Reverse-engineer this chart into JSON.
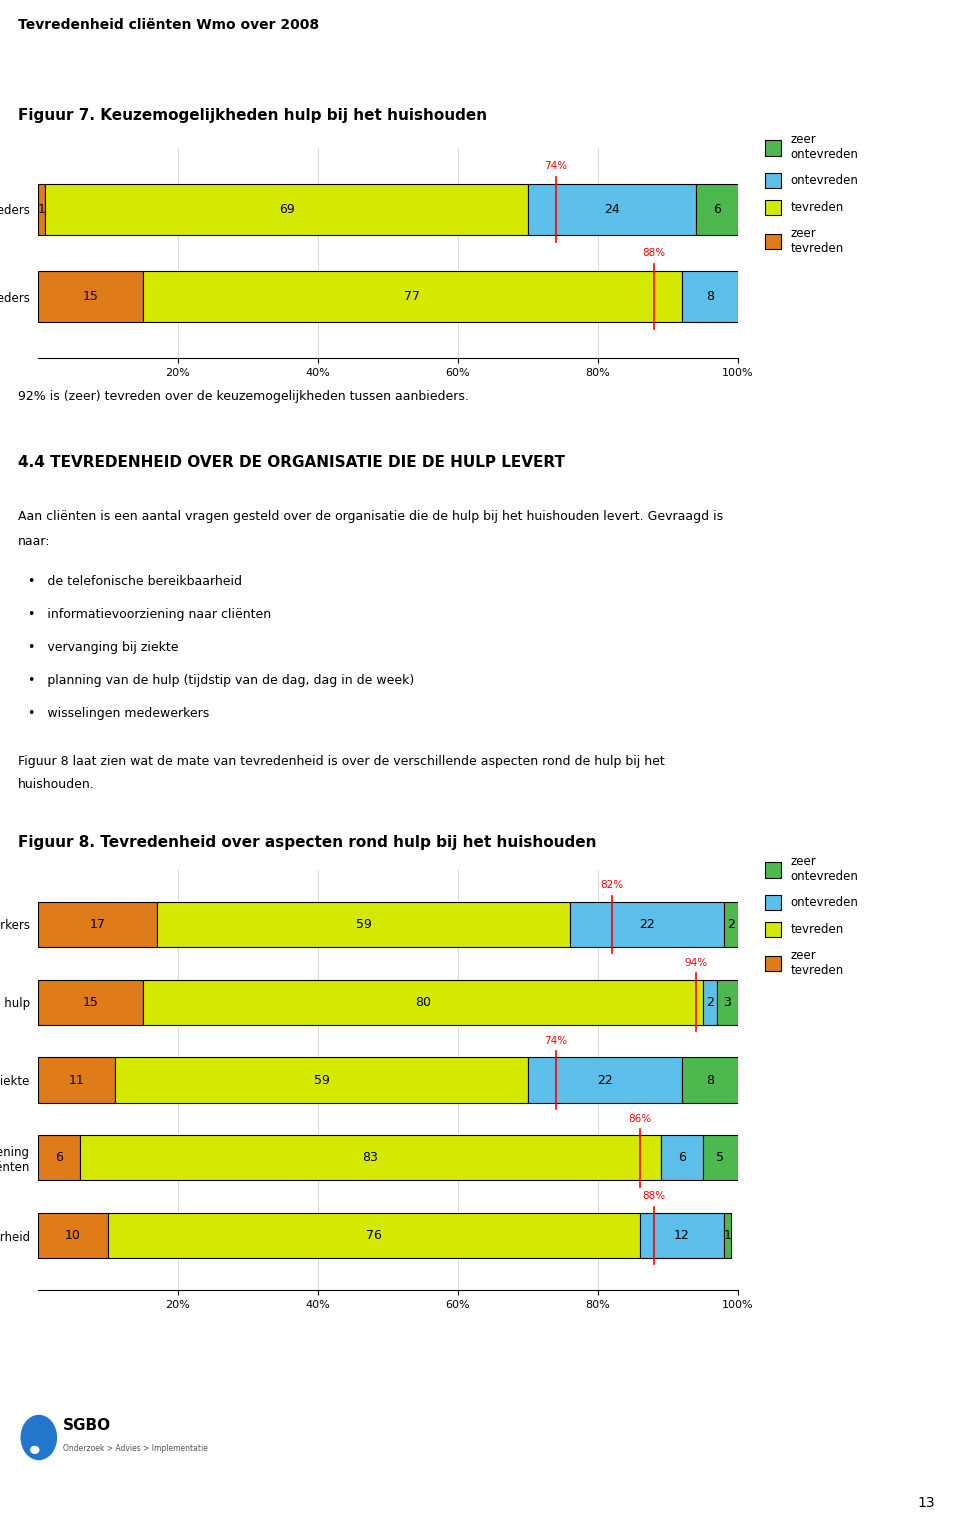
{
  "page_title": "Tevredenheid cliënten Wmo over 2008",
  "fig7_title": "Figuur 7. Keuzemogelijkheden hulp bij het huishouden",
  "fig8_title": "Figuur 8. Tevredenheid over aspecten rond hulp bij het huishouden",
  "section_title": "4.4 TEVREDENHEID OVER DE ORGANISATIE DIE DE HULP LEVERT",
  "para1_line1": "Aan cliënten is een aantal vragen gesteld over de organisatie die de hulp bij het huishouden levert. Gevraagd is",
  "para1_line2": "naar:",
  "bullets": [
    "de telefonische bereikbaarheid",
    "informatievoorziening naar cliënten",
    "vervanging bij ziekte",
    "planning van de hulp (tijdstip van de dag, dag in de week)",
    "wisselingen medewerkers"
  ],
  "para2_line1": "Figuur 8 laat zien wat de mate van tevredenheid is over de verschillende aspecten rond de hulp bij het",
  "para2_line2": "huishouden.",
  "text_92pct": "92% is (zeer) tevreden over de keuzemogelijkheden tussen aanbieders.",
  "colors": {
    "zeer_ontevreden": "#4db84d",
    "ontevreden": "#5bbfea",
    "tevreden": "#d4e800",
    "zeer_tevreden": "#e07b1a"
  },
  "legend_labels": [
    "zeer\nontevreden",
    "ontevreden",
    "tevreden",
    "zeer\ntevreden"
  ],
  "fig7_rows": [
    {
      "label": "informatie over aanbieders",
      "zeer_tevreden": 1,
      "tevreden": 69,
      "ontevreden": 24,
      "zeer_ontevreden": 6,
      "percentage_line": 74,
      "percentage_label": "74%"
    },
    {
      "label": "keuzemogelijkheden tussen aanbieders",
      "zeer_tevreden": 15,
      "tevreden": 77,
      "ontevreden": 8,
      "zeer_ontevreden": 0,
      "percentage_line": 88,
      "percentage_label": "88%"
    }
  ],
  "fig8_rows": [
    {
      "label": "wisselingen medewerkers",
      "zeer_tevreden": 17,
      "tevreden": 59,
      "ontevreden": 22,
      "zeer_ontevreden": 2,
      "percentage_line": 82,
      "percentage_label": "82%"
    },
    {
      "label": "planning van de hulp",
      "zeer_tevreden": 15,
      "tevreden": 80,
      "ontevreden": 2,
      "zeer_ontevreden": 3,
      "percentage_line": 94,
      "percentage_label": "94%"
    },
    {
      "label": "vervanging bij ziekte",
      "zeer_tevreden": 11,
      "tevreden": 59,
      "ontevreden": 22,
      "zeer_ontevreden": 8,
      "percentage_line": 74,
      "percentage_label": "74%"
    },
    {
      "label": "informatievoorziening\ncliënten",
      "zeer_tevreden": 6,
      "tevreden": 83,
      "ontevreden": 6,
      "zeer_ontevreden": 5,
      "percentage_line": 86,
      "percentage_label": "86%"
    },
    {
      "label": "telefonische bereikbaarheid",
      "zeer_tevreden": 10,
      "tevreden": 76,
      "ontevreden": 12,
      "zeer_ontevreden": 1,
      "percentage_line": 88,
      "percentage_label": "88%"
    }
  ],
  "bar_height": 0.58,
  "xticks": [
    20,
    40,
    60,
    80,
    100
  ],
  "xtick_labels": [
    "20%",
    "40%",
    "60%",
    "80%",
    "100%"
  ],
  "background_color": "#ffffff"
}
